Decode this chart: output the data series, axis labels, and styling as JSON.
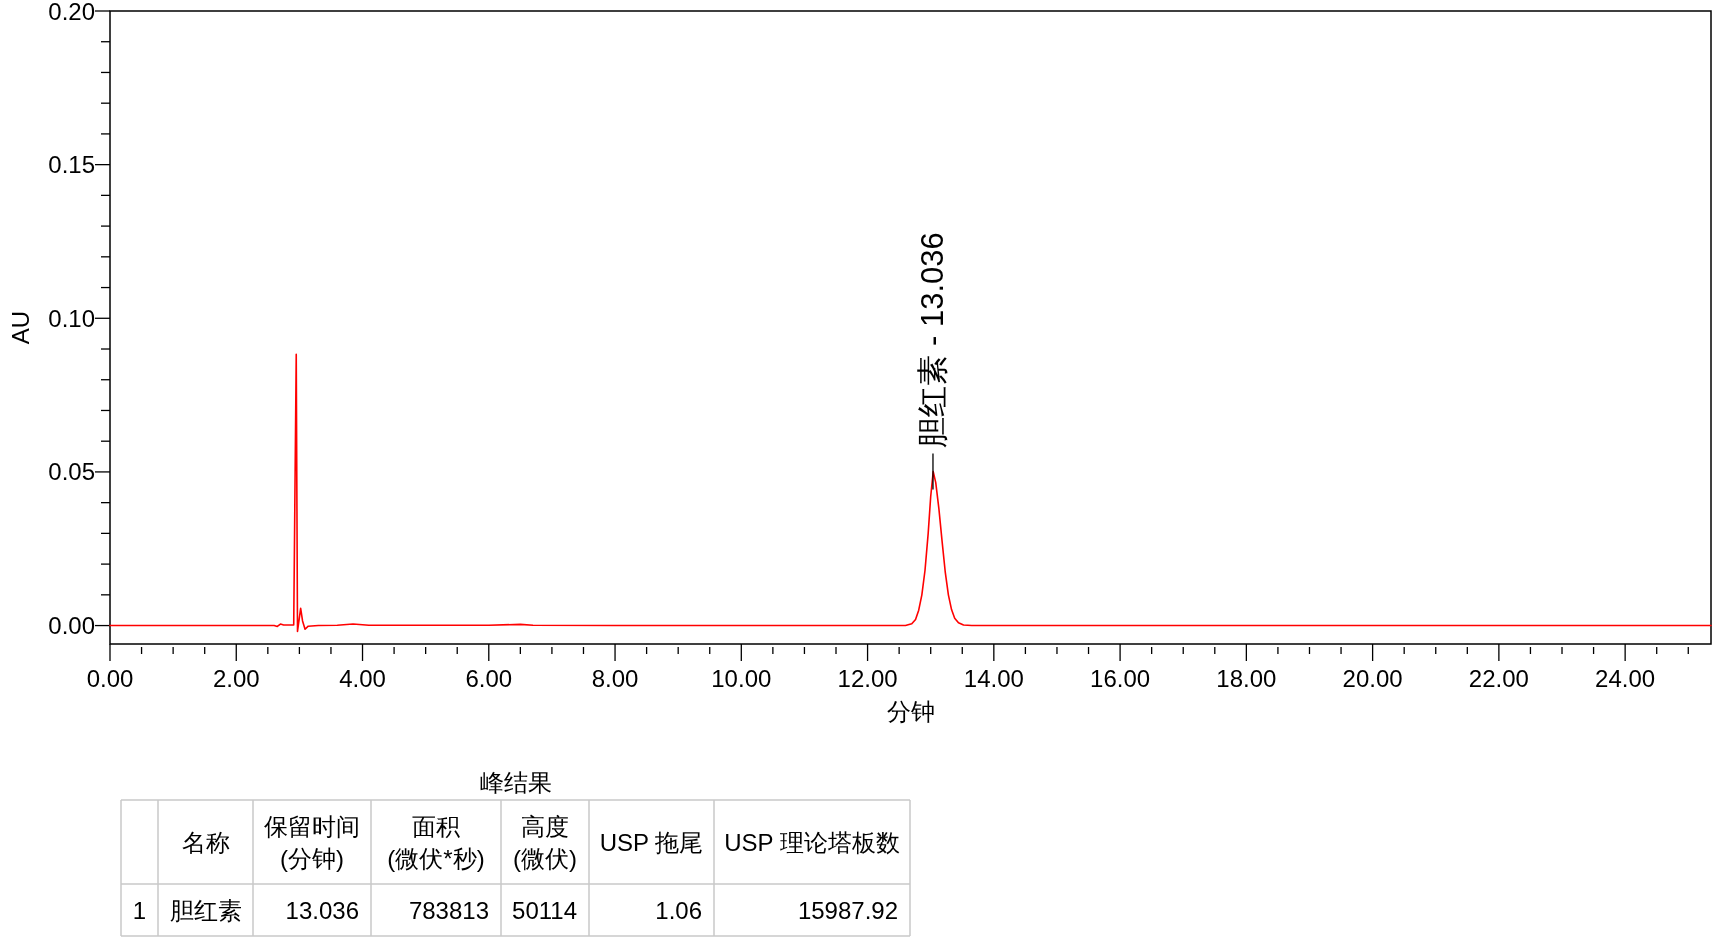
{
  "chart_data": [
    {
      "type": "line",
      "xlabel": "分钟",
      "ylabel": "AU",
      "xlim": [
        0,
        25.36
      ],
      "ylim": [
        -0.006,
        0.2
      ],
      "xticks": [
        {
          "value": 0,
          "label": "0.00"
        },
        {
          "value": 0.5,
          "label": null
        },
        {
          "value": 1,
          "label": null
        },
        {
          "value": 1.5,
          "label": null
        },
        {
          "value": 2,
          "label": "2.00"
        },
        {
          "value": 2.5,
          "label": null
        },
        {
          "value": 3,
          "label": null
        },
        {
          "value": 3.5,
          "label": null
        },
        {
          "value": 4,
          "label": "4.00"
        },
        {
          "value": 4.5,
          "label": null
        },
        {
          "value": 5,
          "label": null
        },
        {
          "value": 5.5,
          "label": null
        },
        {
          "value": 6,
          "label": "6.00"
        },
        {
          "value": 6.5,
          "label": null
        },
        {
          "value": 7,
          "label": null
        },
        {
          "value": 7.5,
          "label": null
        },
        {
          "value": 8,
          "label": "8.00"
        },
        {
          "value": 8.5,
          "label": null
        },
        {
          "value": 9,
          "label": null
        },
        {
          "value": 9.5,
          "label": null
        },
        {
          "value": 10,
          "label": "10.00"
        },
        {
          "value": 10.5,
          "label": null
        },
        {
          "value": 11,
          "label": null
        },
        {
          "value": 11.5,
          "label": null
        },
        {
          "value": 12,
          "label": "12.00"
        },
        {
          "value": 12.5,
          "label": null
        },
        {
          "value": 13,
          "label": null
        },
        {
          "value": 13.5,
          "label": null
        },
        {
          "value": 14,
          "label": "14.00"
        },
        {
          "value": 14.5,
          "label": null
        },
        {
          "value": 15,
          "label": null
        },
        {
          "value": 15.5,
          "label": null
        },
        {
          "value": 16,
          "label": "16.00"
        },
        {
          "value": 16.5,
          "label": null
        },
        {
          "value": 17,
          "label": null
        },
        {
          "value": 17.5,
          "label": null
        },
        {
          "value": 18,
          "label": "18.00"
        },
        {
          "value": 18.5,
          "label": null
        },
        {
          "value": 19,
          "label": null
        },
        {
          "value": 19.5,
          "label": null
        },
        {
          "value": 20,
          "label": "20.00"
        },
        {
          "value": 20.5,
          "label": null
        },
        {
          "value": 21,
          "label": null
        },
        {
          "value": 21.5,
          "label": null
        },
        {
          "value": 22,
          "label": "22.00"
        },
        {
          "value": 22.5,
          "label": null
        },
        {
          "value": 23,
          "label": null
        },
        {
          "value": 23.5,
          "label": null
        },
        {
          "value": 24,
          "label": "24.00"
        },
        {
          "value": 24.5,
          "label": null
        },
        {
          "value": 25,
          "label": null
        }
      ],
      "yticks": [
        {
          "value": 0,
          "label": "0.00"
        },
        {
          "value": 0.01,
          "label": null
        },
        {
          "value": 0.02,
          "label": null
        },
        {
          "value": 0.03,
          "label": null
        },
        {
          "value": 0.04,
          "label": null
        },
        {
          "value": 0.05,
          "label": "0.05"
        },
        {
          "value": 0.06,
          "label": null
        },
        {
          "value": 0.07,
          "label": null
        },
        {
          "value": 0.08,
          "label": null
        },
        {
          "value": 0.09,
          "label": null
        },
        {
          "value": 0.1,
          "label": "0.10"
        },
        {
          "value": 0.11,
          "label": null
        },
        {
          "value": 0.12,
          "label": null
        },
        {
          "value": 0.13,
          "label": null
        },
        {
          "value": 0.14,
          "label": null
        },
        {
          "value": 0.15,
          "label": "0.15"
        },
        {
          "value": 0.16,
          "label": null
        },
        {
          "value": 0.17,
          "label": null
        },
        {
          "value": 0.18,
          "label": null
        },
        {
          "value": 0.19,
          "label": null
        },
        {
          "value": 0.2,
          "label": "0.20"
        }
      ],
      "series": [
        {
          "color": "#ff0000",
          "x": [
            0,
            1,
            2,
            2.6,
            2.65,
            2.7,
            2.75,
            2.91,
            2.95,
            2.97,
            3.02,
            3.05,
            3.09,
            3.14,
            3.3,
            3.6,
            3.85,
            4.1,
            5,
            6,
            6.5,
            6.7,
            8,
            10,
            12,
            12.6,
            12.7,
            12.76,
            12.81,
            12.86,
            12.91,
            12.96,
            13,
            13.04,
            13.08,
            13.13,
            13.18,
            13.23,
            13.28,
            13.33,
            13.38,
            13.44,
            13.52,
            13.65,
            14,
            16,
            18,
            20,
            22,
            24,
            25.36
          ],
          "values": [
            0,
            0,
            0,
            0,
            -0.0003,
            0.0005,
            0.0002,
            0.0002,
            0.0883,
            -0.0019,
            0.0056,
            0.0015,
            -0.0012,
            -0.0002,
            0,
            0.0001,
            0.0005,
            0.0001,
            0.0001,
            0.0001,
            0.0004,
            0.0001,
            0,
            0,
            0,
            0,
            0.0006,
            0.002,
            0.005,
            0.01,
            0.018,
            0.03,
            0.042,
            0.0501,
            0.0465,
            0.038,
            0.0275,
            0.0175,
            0.01,
            0.0052,
            0.0024,
            0.0009,
            0.0002,
            0,
            0,
            0,
            0,
            0,
            0,
            0,
            0
          ]
        }
      ],
      "annotations": [
        {
          "text": "胆红素 - 13.036",
          "x": 13.036,
          "y": 0.0501
        }
      ]
    },
    {
      "type": "other",
      "title": "峰结果",
      "annotations": [
        "名称",
        "保留时间\n(分钟)",
        "面积\n(微伏*秒)",
        "高度\n(微伏)",
        "USP 拖尾",
        "USP 理论塔板数",
        "1",
        "胆红素",
        "13.036",
        "783813",
        "50114",
        "1.06",
        "15987.92"
      ]
    }
  ]
}
